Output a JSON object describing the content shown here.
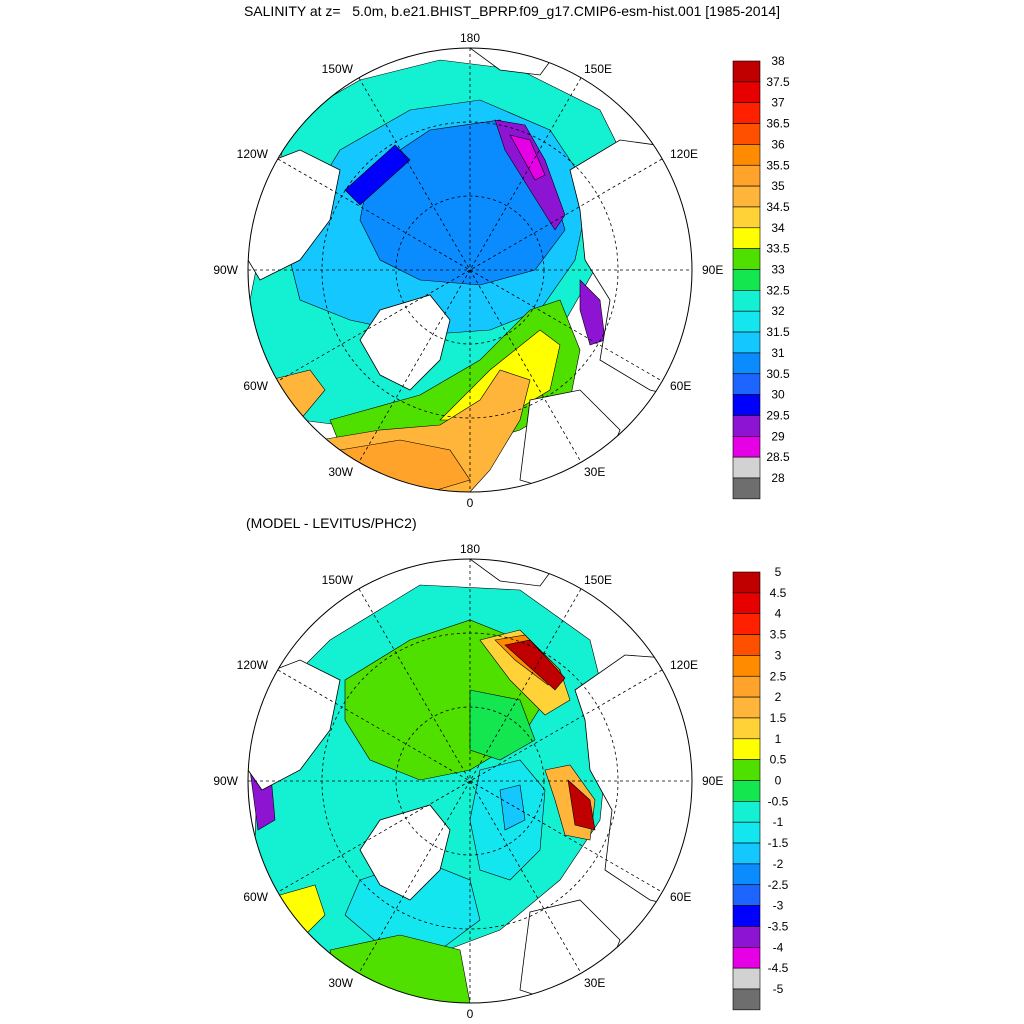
{
  "title": "SALINITY at z=   5.0m, b.e21.BHIST_BPRP.f09_g17.CMIP6-esm-hist.001 [1985-2014]",
  "subtitle": "(MODEL - LEVITUS/PHC2)",
  "panels": [
    {
      "lon_labels": {
        "top": "180",
        "bottom": "0",
        "left": "90W",
        "right": "90E",
        "ul1": "150W",
        "ul2": "120W",
        "ur1": "150E",
        "ur2": "120E",
        "ll1": "60W",
        "ll2": "30W",
        "lr1": "60E",
        "lr2": "30E"
      },
      "colorbar": {
        "labels": [
          "38",
          "37.5",
          "37",
          "36.5",
          "36",
          "35.5",
          "35",
          "34.5",
          "34",
          "33.5",
          "33",
          "32.5",
          "32",
          "31.5",
          "31",
          "30.5",
          "30",
          "29.5",
          "29",
          "28.5",
          "28"
        ],
        "colors": [
          "#c00000",
          "#e60000",
          "#ff2000",
          "#ff5000",
          "#ff8c00",
          "#ffa32a",
          "#ffb43a",
          "#ffd238",
          "#ffff00",
          "#50e000",
          "#14e650",
          "#14f0d2",
          "#14e6f0",
          "#14c8ff",
          "#0a8cff",
          "#1e64ff",
          "#0000ff",
          "#8c14d2",
          "#e600e6",
          "#d2d2d2",
          "#6e6e6e"
        ]
      }
    },
    {
      "lon_labels": {
        "top": "180",
        "bottom": "0",
        "left": "90W",
        "right": "90E",
        "ul1": "150W",
        "ul2": "120W",
        "ur1": "150E",
        "ur2": "120E",
        "ll1": "60W",
        "ll2": "30W",
        "lr1": "60E",
        "lr2": "30E"
      },
      "colorbar": {
        "labels": [
          "5",
          "4.5",
          "4",
          "3.5",
          "3",
          "2.5",
          "2",
          "1.5",
          "1",
          "0.5",
          "0",
          "-0.5",
          "-1",
          "-1.5",
          "-2",
          "-2.5",
          "-3",
          "-3.5",
          "-4",
          "-4.5",
          "-5"
        ],
        "colors": [
          "#c00000",
          "#e60000",
          "#ff2000",
          "#ff5000",
          "#ff8c00",
          "#ffa32a",
          "#ffb43a",
          "#ffd238",
          "#ffff00",
          "#50e000",
          "#14e650",
          "#14f0d2",
          "#14e6f0",
          "#14c8ff",
          "#0a8cff",
          "#1e64ff",
          "#0000ff",
          "#8c14d2",
          "#e600e6",
          "#d2d2d2",
          "#6e6e6e"
        ]
      }
    }
  ]
}
